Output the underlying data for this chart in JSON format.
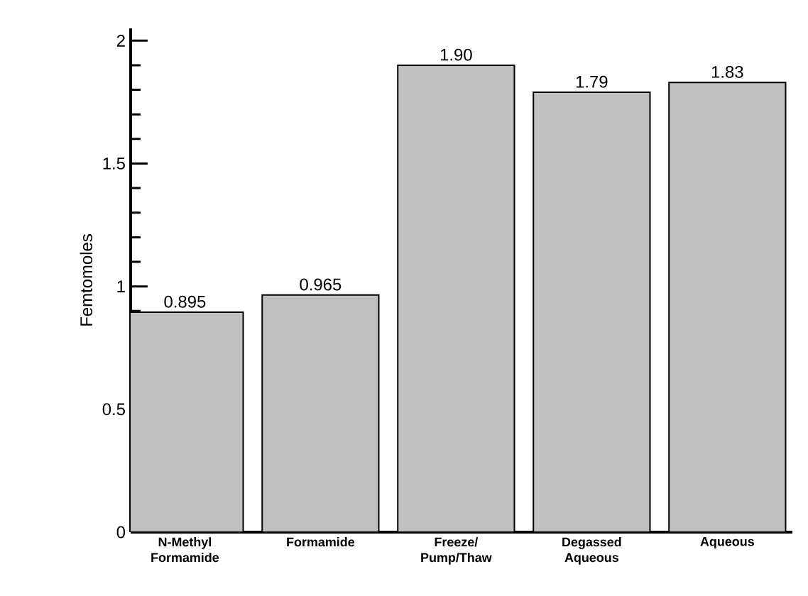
{
  "chart_data": {
    "type": "bar",
    "ylabel": "Femtomoles",
    "categories": [
      "N-Methyl Formamide",
      "Formamide",
      "Freeze/ Pump/Thaw",
      "Degassed Aqueous",
      "Aqueous"
    ],
    "values": [
      0.895,
      0.965,
      1.9,
      1.79,
      1.83
    ],
    "value_labels": [
      "0.895",
      "0.965",
      "1.90",
      "1.79",
      "1.83"
    ],
    "color": "#c0c0c0",
    "ylim": [
      0,
      2.05
    ],
    "yticks": [
      0,
      0.5,
      1,
      1.5,
      2
    ],
    "grid": false
  }
}
